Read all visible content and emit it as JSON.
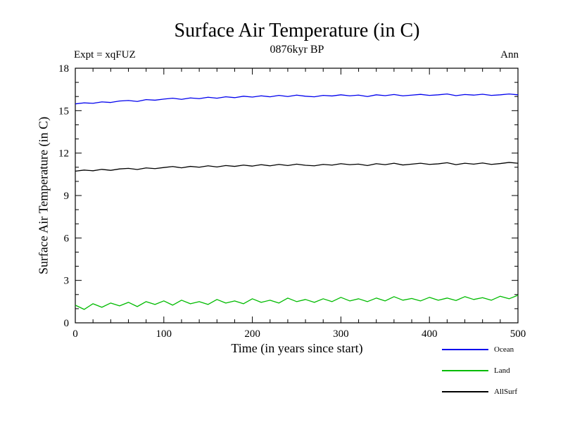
{
  "header": {
    "title": "Surface Air Temperature (in C)",
    "subtitle": "0876kyr BP",
    "experiment_label": "Expt = xqFUZ",
    "period_label": "Ann"
  },
  "chart_data": {
    "type": "line",
    "title": "Surface Air Temperature (in C)",
    "subtitle": "0876kyr BP",
    "xlabel": "Time (in years since start)",
    "ylabel": "Surface Air Temperature (in C)",
    "xlim": [
      0,
      500
    ],
    "ylim": [
      0,
      18
    ],
    "xticks": [
      0,
      100,
      200,
      300,
      400,
      500
    ],
    "yticks": [
      0,
      3,
      6,
      9,
      12,
      15,
      18
    ],
    "x_minor_step": 20,
    "y_minor_step": 1,
    "grid": false,
    "legend_position": "bottom-right",
    "x_start": 0,
    "x_step": 10,
    "series": [
      {
        "name": "Ocean",
        "color": "#0000ee",
        "values": [
          15.48,
          15.55,
          15.52,
          15.62,
          15.58,
          15.68,
          15.72,
          15.65,
          15.78,
          15.74,
          15.82,
          15.88,
          15.8,
          15.9,
          15.85,
          15.95,
          15.88,
          15.98,
          15.92,
          16.02,
          15.96,
          16.05,
          15.98,
          16.08,
          16.0,
          16.1,
          16.02,
          15.98,
          16.08,
          16.04,
          16.12,
          16.05,
          16.1,
          16.0,
          16.12,
          16.06,
          16.14,
          16.05,
          16.1,
          16.15,
          16.08,
          16.12,
          16.18,
          16.06,
          16.14,
          16.1,
          16.16,
          16.08,
          16.12,
          16.18,
          16.12
        ]
      },
      {
        "name": "Land",
        "color": "#00bb00",
        "values": [
          1.25,
          0.95,
          1.35,
          1.1,
          1.4,
          1.2,
          1.45,
          1.15,
          1.5,
          1.3,
          1.55,
          1.25,
          1.6,
          1.35,
          1.5,
          1.3,
          1.65,
          1.4,
          1.55,
          1.35,
          1.7,
          1.45,
          1.6,
          1.4,
          1.75,
          1.5,
          1.65,
          1.45,
          1.7,
          1.5,
          1.8,
          1.55,
          1.7,
          1.5,
          1.75,
          1.55,
          1.85,
          1.6,
          1.72,
          1.55,
          1.8,
          1.6,
          1.75,
          1.58,
          1.85,
          1.65,
          1.78,
          1.6,
          1.88,
          1.7,
          1.95
        ]
      },
      {
        "name": "AllSurf",
        "color": "#000000",
        "values": [
          10.72,
          10.8,
          10.75,
          10.85,
          10.78,
          10.88,
          10.92,
          10.84,
          10.95,
          10.9,
          10.98,
          11.05,
          10.96,
          11.06,
          11.0,
          11.1,
          11.02,
          11.12,
          11.06,
          11.15,
          11.08,
          11.18,
          11.1,
          11.2,
          11.12,
          11.22,
          11.14,
          11.1,
          11.2,
          11.15,
          11.25,
          11.18,
          11.22,
          11.12,
          11.25,
          11.18,
          11.28,
          11.16,
          11.22,
          11.28,
          11.2,
          11.24,
          11.32,
          11.18,
          11.28,
          11.22,
          11.3,
          11.2,
          11.26,
          11.34,
          11.28
        ]
      }
    ]
  }
}
